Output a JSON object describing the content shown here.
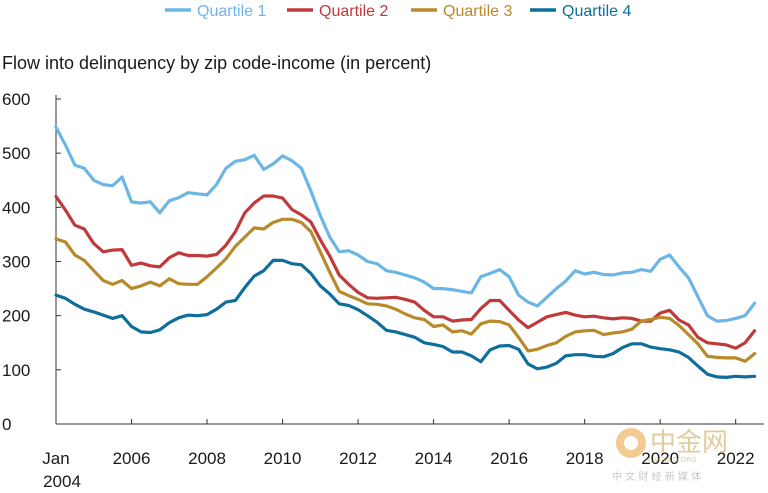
{
  "chart_data": {
    "type": "line",
    "title": "Flow into delinquency by zip code-income (in percent)",
    "xlabel": "",
    "ylabel": "",
    "x_start": "2004-01",
    "x_end": "2022-12",
    "xlim": [
      2004.0,
      2022.75
    ],
    "ylim": [
      0,
      600
    ],
    "yticks": [
      0,
      100,
      200,
      300,
      400,
      500,
      600
    ],
    "x_tick_labels": [
      {
        "x": 2004.0,
        "label": "Jan"
      },
      {
        "x": 2006.0,
        "label": "2006"
      },
      {
        "x": 2008.0,
        "label": "2008"
      },
      {
        "x": 2010.0,
        "label": "2010"
      },
      {
        "x": 2012.0,
        "label": "2012"
      },
      {
        "x": 2014.0,
        "label": "2014"
      },
      {
        "x": 2016.0,
        "label": "2016"
      },
      {
        "x": 2018.0,
        "label": "2018"
      },
      {
        "x": 2020.0,
        "label": "2020"
      },
      {
        "x": 2022.0,
        "label": "2022"
      }
    ],
    "x_subtick_label": "2004",
    "grid": false,
    "legend_position": "top",
    "x_step": 0.25,
    "series": [
      {
        "name": "Quartile 1",
        "color": "#6cb6e6",
        "values": [
          548,
          515,
          478,
          472,
          450,
          442,
          440,
          456,
          410,
          408,
          410,
          390,
          412,
          418,
          427,
          425,
          423,
          442,
          472,
          485,
          488,
          496,
          470,
          480,
          495,
          486,
          472,
          430,
          385,
          345,
          318,
          320,
          312,
          300,
          296,
          283,
          280,
          275,
          270,
          262,
          250,
          250,
          248,
          245,
          242,
          272,
          278,
          285,
          272,
          238,
          225,
          218,
          234,
          250,
          264,
          283,
          277,
          280,
          276,
          275,
          279,
          280,
          285,
          282,
          304,
          312,
          290,
          270,
          235,
          200,
          190,
          191,
          195,
          200,
          223
        ]
      },
      {
        "name": "Quartile 2",
        "color": "#c0393b",
        "values": [
          420,
          395,
          367,
          360,
          333,
          318,
          321,
          322,
          293,
          297,
          292,
          290,
          307,
          316,
          311,
          311,
          310,
          313,
          330,
          355,
          390,
          408,
          421,
          421,
          417,
          396,
          386,
          373,
          340,
          310,
          275,
          258,
          243,
          233,
          232,
          233,
          234,
          230,
          225,
          210,
          198,
          198,
          190,
          192,
          193,
          213,
          228,
          228,
          210,
          192,
          178,
          188,
          198,
          202,
          206,
          201,
          198,
          199,
          196,
          194,
          196,
          195,
          190,
          190,
          205,
          210,
          192,
          183,
          160,
          150,
          148,
          146,
          140,
          150,
          172
        ]
      },
      {
        "name": "Quartile 3",
        "color": "#b88a2a",
        "values": [
          342,
          336,
          312,
          302,
          283,
          265,
          258,
          265,
          250,
          255,
          262,
          255,
          268,
          259,
          258,
          258,
          272,
          288,
          305,
          328,
          345,
          362,
          360,
          372,
          378,
          378,
          372,
          355,
          318,
          280,
          245,
          237,
          230,
          222,
          221,
          218,
          212,
          203,
          196,
          193,
          180,
          183,
          170,
          172,
          166,
          185,
          190,
          189,
          183,
          160,
          135,
          138,
          145,
          150,
          162,
          170,
          172,
          173,
          165,
          168,
          170,
          175,
          190,
          193,
          197,
          195,
          182,
          165,
          148,
          125,
          123,
          122,
          122,
          116,
          130
        ]
      },
      {
        "name": "Quartile 4",
        "color": "#0e6e9c",
        "values": [
          238,
          232,
          221,
          212,
          207,
          201,
          195,
          200,
          180,
          170,
          169,
          174,
          187,
          196,
          201,
          200,
          202,
          212,
          225,
          228,
          252,
          273,
          283,
          302,
          302,
          296,
          294,
          278,
          255,
          240,
          222,
          219,
          211,
          200,
          188,
          173,
          170,
          165,
          160,
          150,
          147,
          143,
          133,
          133,
          126,
          115,
          137,
          144,
          145,
          138,
          111,
          102,
          105,
          112,
          126,
          128,
          128,
          125,
          124,
          130,
          141,
          148,
          148,
          142,
          139,
          137,
          133,
          123,
          107,
          92,
          87,
          86,
          88,
          87,
          88
        ]
      }
    ]
  },
  "watermark": {
    "text": "中金网",
    "subtext": "中 文 财 经 新 媒 体",
    "url_fragment": "CNGOLD.ORG"
  }
}
